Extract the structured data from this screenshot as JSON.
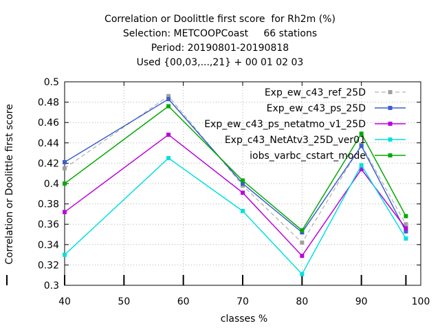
{
  "chart_data": {
    "type": "line",
    "title_lines": [
      "Correlation or Doolittle first score  for Rh2m (%)",
      "Selection: METCOOPCoast     66 stations",
      "Period: 20190801-20190818",
      "Used {00,03,...,21} + 00 01 02 03"
    ],
    "xlabel": "classes %",
    "ylabel": "Correlation or Doolittle first score",
    "xlim": [
      40,
      100
    ],
    "ylim": [
      0.3,
      0.5
    ],
    "xticks": [
      40,
      50,
      60,
      70,
      80,
      90,
      100
    ],
    "yticks": [
      0.3,
      0.32,
      0.34,
      0.36,
      0.38,
      0.4,
      0.42,
      0.44,
      0.46,
      0.48,
      0.5
    ],
    "ytick_labels": [
      "0.3",
      "0.32",
      "0.34",
      "0.36",
      "0.38",
      "0.4",
      "0.42",
      "0.44",
      "0.46",
      "0.48",
      "0.5"
    ],
    "grid": true,
    "legend_position": "top-right",
    "x": [
      40,
      57.5,
      70,
      80,
      90,
      97.5
    ],
    "series": [
      {
        "name": "Exp_ew_c43_ref_25D",
        "color": "#a0a0a0",
        "dashed": true,
        "values": [
          0.415,
          0.486,
          0.398,
          0.342,
          0.438,
          0.36
        ]
      },
      {
        "name": "Exp_ew_c43_ps_25D",
        "color": "#3a5fcd",
        "dashed": false,
        "values": [
          0.421,
          0.483,
          0.4,
          0.352,
          0.437,
          0.353
        ]
      },
      {
        "name": "Exp_ew_c43_ps_netatmo_v1_25D",
        "color": "#bb00dd",
        "dashed": false,
        "values": [
          0.372,
          0.448,
          0.391,
          0.329,
          0.414,
          0.356
        ]
      },
      {
        "name": "Exp_c43_NetAtv3_25D_ver01",
        "color": "#00e0e0",
        "dashed": false,
        "values": [
          0.33,
          0.425,
          0.373,
          0.311,
          0.418,
          0.346
        ]
      },
      {
        "name": "iobs_varbc_cstart_mode",
        "color": "#00aa00",
        "dashed": false,
        "values": [
          0.4,
          0.476,
          0.403,
          0.354,
          0.449,
          0.368
        ]
      }
    ],
    "class_markers": [
      40,
      50,
      60,
      70,
      80,
      90,
      97.5
    ]
  }
}
